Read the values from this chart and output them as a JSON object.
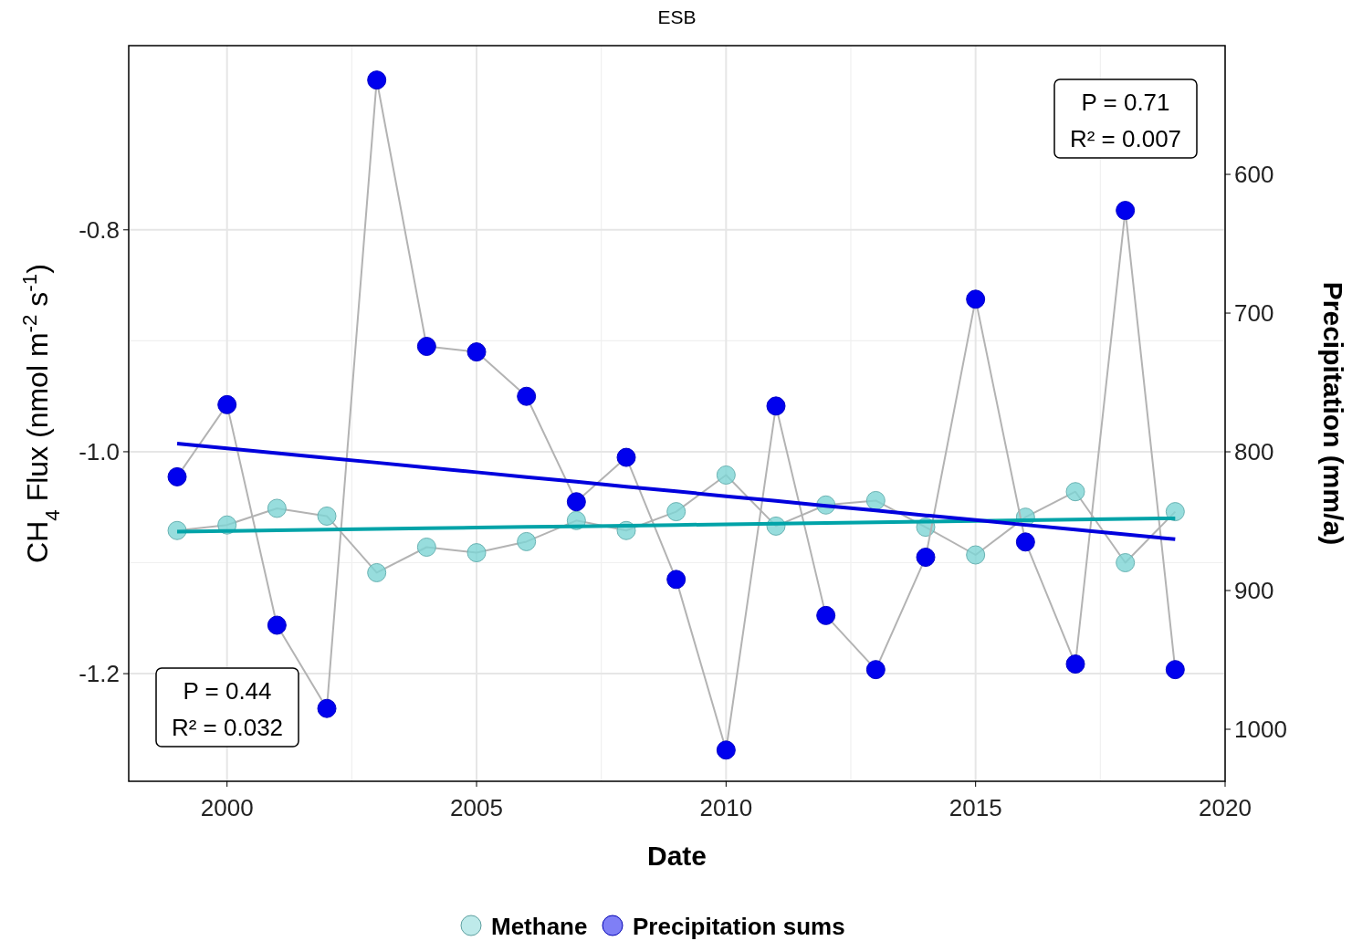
{
  "chart_data": {
    "type": "line",
    "title": "ESB",
    "xlabel": "Date",
    "ylabel": "CH$_{4}$ Flux (nmol m$^{-2}$ s$^{-1}$)",
    "y2label": "Precipitation (mm/a)",
    "x": [
      1999,
      2000,
      2001,
      2002,
      2003,
      2004,
      2005,
      2006,
      2007,
      2008,
      2009,
      2010,
      2011,
      2012,
      2013,
      2014,
      2015,
      2016,
      2017,
      2018,
      2019
    ],
    "series": [
      {
        "name": "Methane",
        "color": "#7dd5d5",
        "marker": "circle",
        "values": [
          -1.071,
          -1.066,
          -1.051,
          -1.058,
          -1.109,
          -1.086,
          -1.091,
          -1.081,
          -1.062,
          -1.071,
          -1.054,
          -1.021,
          -1.067,
          -1.048,
          -1.044,
          -1.068,
          -1.093,
          -1.059,
          -1.036,
          -1.1,
          -1.054
        ]
      },
      {
        "name": "Precipitation sums",
        "color": "#0000ee",
        "marker": "circle",
        "axis": "y2",
        "values": [
          818,
          766,
          925,
          985,
          532,
          724,
          728,
          760,
          836,
          804,
          892,
          1015,
          767,
          918,
          957,
          876,
          690,
          865,
          953,
          626,
          957
        ]
      },
      {
        "type": "line",
        "color": "#00a3a8",
        "marker": "none",
        "values": [
          -1.072,
          -1.0714,
          -1.0708,
          -1.0702,
          -1.0696,
          -1.069,
          -1.0684,
          -1.0678,
          -1.0672,
          -1.0666,
          -1.066,
          -1.0654,
          -1.0648,
          -1.0642,
          -1.0636,
          -1.063,
          -1.0624,
          -1.0618,
          -1.0612,
          -1.0606,
          -1.06
        ]
      },
      {
        "type": "line",
        "color": "#0000dd",
        "marker": "none",
        "axis": "y2",
        "values": [
          794,
          797.5,
          800.9,
          804.4,
          807.8,
          811.3,
          814.7,
          818.2,
          821.6,
          825.1,
          828.5,
          832,
          835.4,
          838.9,
          842.3,
          845.8,
          849.2,
          852.7,
          856.1,
          859.6,
          863
        ]
      }
    ],
    "xlim": [
      1998.03,
      2020
    ],
    "xticks": [
      2000,
      2005,
      2010,
      2015,
      2020
    ],
    "ylim": [
      -1.297,
      -0.634
    ],
    "yticks": [
      {
        "value": -1.2,
        "label": "-1.2"
      },
      {
        "value": -1.0,
        "label": "-1.0"
      },
      {
        "value": -0.8,
        "label": "-0.8"
      }
    ],
    "y2lim": [
      1037.5,
      507.2
    ],
    "y2ticks": [
      600,
      700,
      800,
      900,
      1000
    ],
    "grid": true,
    "legend": "bottom",
    "annotations": [
      "P = 0.71\nR² = 0.007",
      "P = 0.44\nR² = 0.032"
    ]
  }
}
